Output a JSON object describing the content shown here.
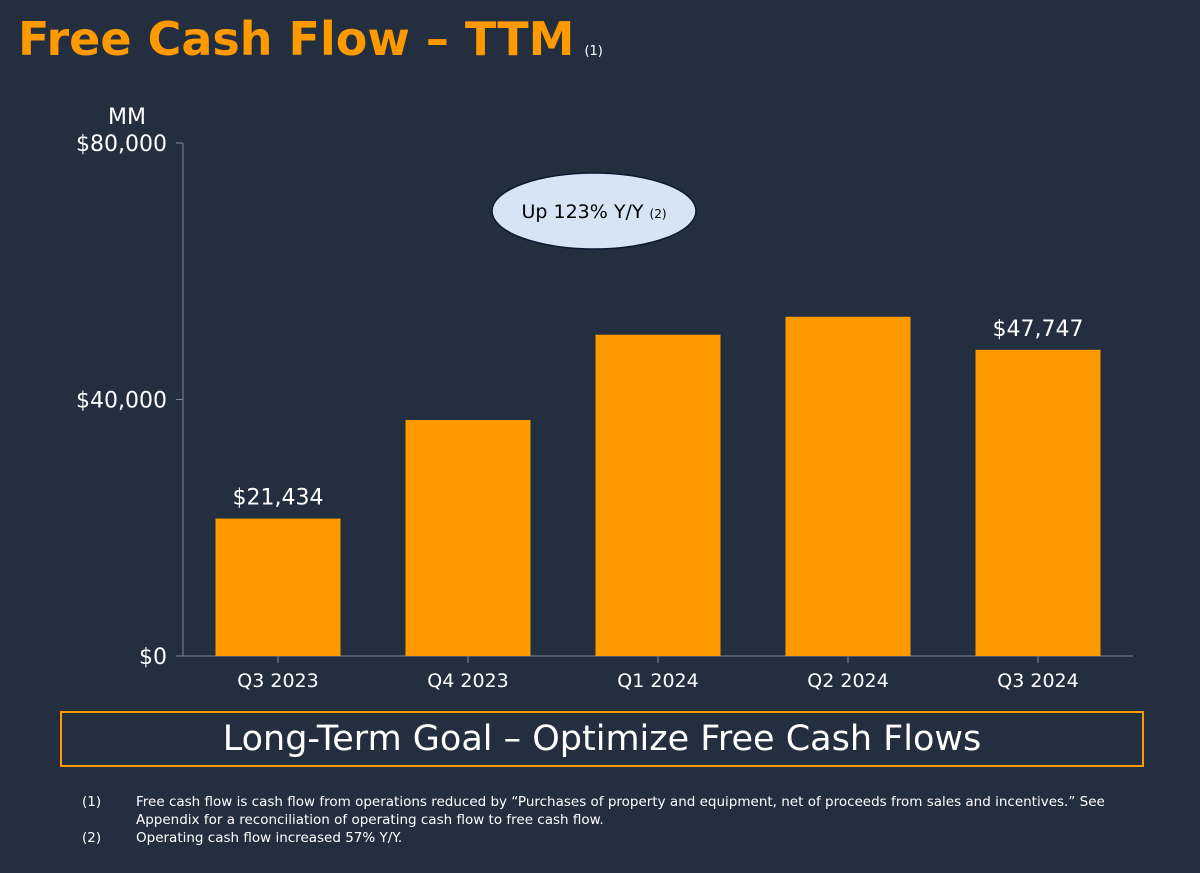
{
  "title": {
    "text": "Free Cash Flow – TTM",
    "footnote_ref": "(1)"
  },
  "colors": {
    "background": "#232f3e",
    "accent": "#ff9900",
    "callout_fill": "#d6e4f5"
  },
  "chart_data": {
    "type": "bar",
    "title": "Free Cash Flow – TTM",
    "unit_label": "MM",
    "categories": [
      "Q3 2023",
      "Q4 2023",
      "Q1 2024",
      "Q2 2024",
      "Q3 2024"
    ],
    "values": [
      21434,
      36800,
      50100,
      52900,
      47747
    ],
    "data_labels": [
      "$21,434",
      "",
      "",
      "",
      "$47,747"
    ],
    "ylim": [
      0,
      80000
    ],
    "yticks": [
      0,
      40000,
      80000
    ],
    "ytick_labels": [
      "$0",
      "$40,000",
      "$80,000"
    ],
    "annotation": {
      "text": "Up 123% Y/Y",
      "footnote_ref": "(2)"
    },
    "bar_color": "#ff9900"
  },
  "goal_banner": "Long-Term Goal – Optimize Free Cash Flows",
  "footnotes": [
    {
      "num": "(1)",
      "text": "Free cash flow is cash flow from operations reduced by “Purchases of property and equipment, net of proceeds from sales and incentives.” See Appendix for a reconciliation of operating cash flow to free cash flow."
    },
    {
      "num": "(2)",
      "text": "Operating cash flow increased 57% Y/Y."
    }
  ]
}
